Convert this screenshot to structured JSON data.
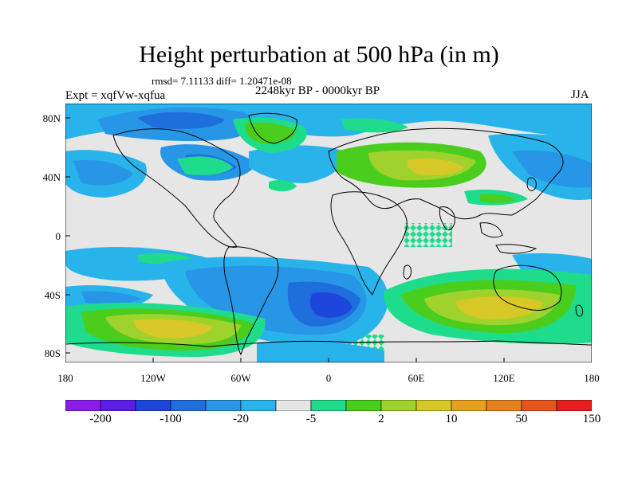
{
  "title": "Height perturbation at 500 hPa (in m)",
  "stats": "rmsd= 7.11133 diff= 1.20471e-08",
  "period": "2248kyr BP - 0000kyr BP",
  "experiment": "Expt = xqfVw-xqfua",
  "season": "JJA",
  "lat_labels": [
    "80N",
    "40N",
    "0",
    "40S",
    "80S"
  ],
  "lon_labels": [
    "180",
    "120W",
    "60W",
    "0",
    "60E",
    "120E",
    "180"
  ],
  "colorbar": {
    "labels": [
      "-200",
      "-100",
      "-20",
      "-5",
      "2",
      "10",
      "50",
      "150"
    ],
    "colors": [
      "#8c1ce8",
      "#5a1ee6",
      "#1e46dc",
      "#1e6edc",
      "#2896e6",
      "#28b4eb",
      "#e6e6e6",
      "#1edc8c",
      "#4bcd1e",
      "#a0d22d",
      "#d7c828",
      "#e6a01e",
      "#e6821e",
      "#e6551e",
      "#e61e1e"
    ]
  },
  "colors": {
    "gray": "#e6e6e6",
    "light_blue": "#28b4eb",
    "mid_blue": "#2896e6",
    "blue": "#1e6edc",
    "dark_blue": "#1e46dc",
    "teal_green": "#1edc8c",
    "green": "#4bcd1e",
    "yellow_green": "#a0d22d",
    "yellow": "#d7c828",
    "orange": "#e6a01e",
    "coast": "#000000"
  }
}
